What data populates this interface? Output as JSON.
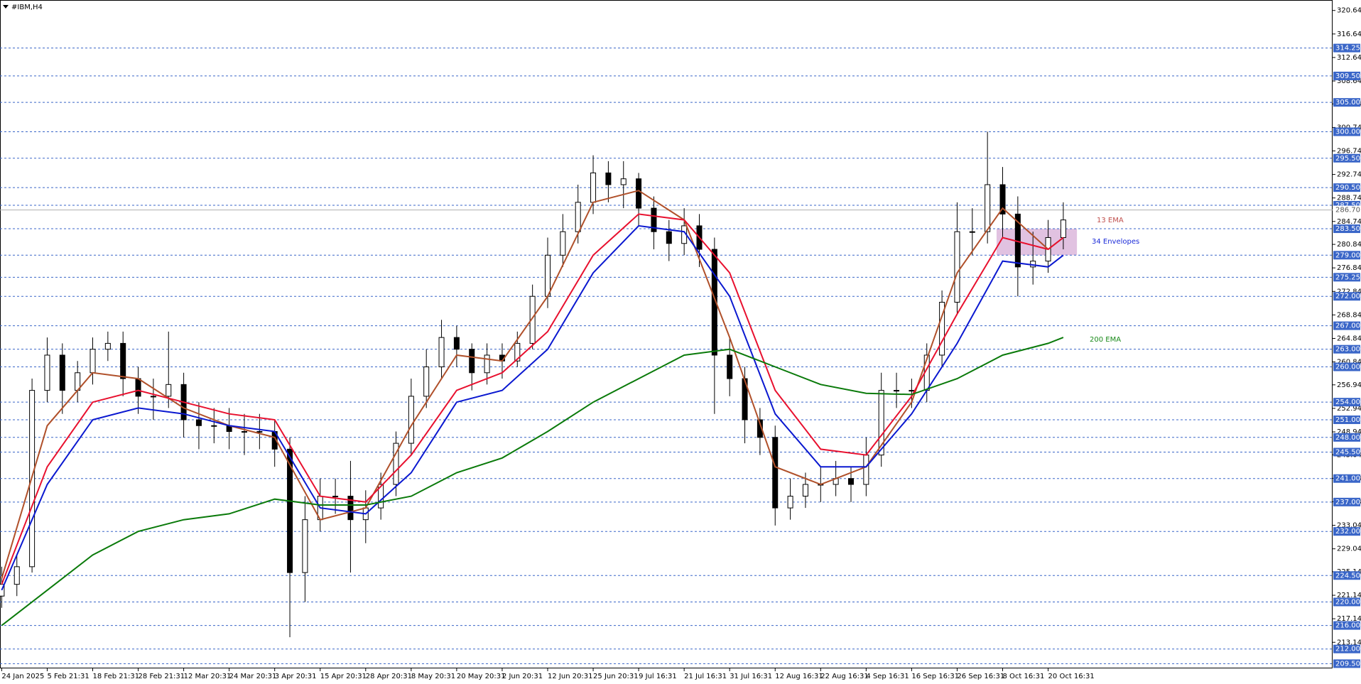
{
  "chart_data": {
    "type": "candlestick",
    "title": "#IBM,H4",
    "categories": [
      "24 Jan 2025",
      null,
      null,
      "5 Feb 21:31",
      null,
      null,
      "18 Feb 21:31",
      null,
      null,
      "28 Feb 21:31",
      null,
      null,
      "12 Mar 20:31",
      null,
      null,
      "24 Mar 20:31",
      null,
      null,
      "3 Apr 20:31",
      null,
      null,
      "15 Apr 20:31",
      null,
      null,
      "28 Apr 20:31",
      null,
      null,
      "8 May 20:31",
      null,
      null,
      "20 May 20:31",
      null,
      null,
      "2 Jun 20:31",
      null,
      null,
      "12 Jun 20:31",
      null,
      null,
      "25 Jun 20:31",
      null,
      null,
      "9 Jul 16:31",
      null,
      null,
      "21 Jul 16:31",
      null,
      null,
      "31 Jul 16:31",
      null,
      null,
      "12 Aug 16:31",
      null,
      null,
      "22 Aug 16:31",
      null,
      null,
      "4 Sep 16:31",
      null,
      null,
      "16 Sep 16:31",
      null,
      null,
      "26 Sep 16:31",
      null,
      null,
      "8 Oct 16:31",
      null,
      null,
      "20 Oct 16:31",
      null
    ],
    "open": [
      221,
      223,
      226,
      256,
      262,
      256,
      259,
      263,
      264,
      258,
      255,
      255,
      257,
      251,
      250,
      250,
      249,
      249,
      249,
      246,
      225,
      234,
      238,
      238,
      234,
      236,
      240,
      247,
      255,
      260,
      265,
      263,
      259,
      262,
      261,
      264,
      272,
      279,
      283,
      288,
      293,
      291,
      292,
      287,
      283,
      281,
      284,
      280,
      262,
      258,
      251,
      248,
      236,
      238,
      240,
      240,
      241,
      240,
      245,
      256,
      256,
      256,
      262,
      271,
      283,
      283,
      291,
      286,
      277,
      278,
      282
    ],
    "high": [
      226,
      228,
      258,
      265,
      264,
      261,
      265,
      266,
      266,
      260,
      258,
      266,
      259,
      254,
      253,
      253,
      252,
      252,
      251,
      248,
      238,
      241,
      241,
      244,
      239,
      242,
      249,
      258,
      263,
      268,
      267,
      264,
      264,
      264,
      266,
      274,
      282,
      286,
      291,
      296,
      295,
      295,
      293,
      289,
      285,
      287,
      286,
      282,
      265,
      260,
      253,
      250,
      241,
      242,
      243,
      244,
      243,
      248,
      259,
      259,
      258,
      264,
      273,
      288,
      287,
      300,
      294,
      289,
      283,
      285,
      288
    ],
    "low": [
      219,
      221,
      225,
      254,
      252,
      254,
      257,
      261,
      255,
      252,
      251,
      253,
      248,
      246,
      247,
      246,
      245,
      246,
      243,
      214,
      220,
      232,
      235,
      225,
      230,
      234,
      238,
      245,
      253,
      258,
      260,
      256,
      257,
      258,
      260,
      263,
      270,
      277,
      281,
      286,
      288,
      287,
      284,
      280,
      278,
      279,
      277,
      252,
      255,
      247,
      245,
      233,
      234,
      236,
      237,
      238,
      237,
      238,
      243,
      253,
      253,
      254,
      260,
      269,
      279,
      281,
      282,
      272,
      274,
      276,
      280
    ],
    "close": [
      223,
      226,
      256,
      262,
      256,
      259,
      263,
      264,
      258,
      255,
      255,
      257,
      251,
      250,
      250,
      249,
      249,
      249,
      246,
      225,
      234,
      238,
      238,
      234,
      236,
      240,
      247,
      255,
      260,
      265,
      263,
      259,
      262,
      261,
      264,
      272,
      279,
      283,
      288,
      293,
      291,
      292,
      287,
      283,
      281,
      284,
      280,
      262,
      258,
      251,
      248,
      236,
      238,
      240,
      240,
      241,
      240,
      245,
      256,
      256,
      256,
      262,
      271,
      283,
      283,
      291,
      286,
      277,
      278,
      282,
      285
    ],
    "series": [
      {
        "name": "13 EMA",
        "color": "#b0502a",
        "label_color": "#c0504d",
        "x": [
          0,
          3,
          6,
          9,
          12,
          15,
          18,
          21,
          24,
          27,
          30,
          33,
          36,
          39,
          42,
          45,
          48,
          51,
          54,
          57,
          60,
          63,
          66,
          69,
          70
        ],
        "values": [
          224,
          250,
          259,
          258,
          253,
          250,
          248,
          234,
          236,
          250,
          262,
          261,
          272,
          288,
          290,
          285,
          265,
          243,
          240,
          243,
          254,
          276,
          287,
          280,
          282
        ]
      },
      {
        "name": "34 Envelopes",
        "color": "#e8102e",
        "lower_color": "#0a18d0",
        "label_color": "#1a2ad8",
        "x": [
          0,
          3,
          6,
          9,
          12,
          15,
          18,
          21,
          24,
          27,
          30,
          33,
          36,
          39,
          42,
          45,
          48,
          51,
          54,
          57,
          60,
          63,
          66,
          69,
          70
        ],
        "values": [
          223,
          243,
          254,
          256,
          254,
          252,
          251,
          238,
          237,
          245,
          256,
          259,
          266,
          279,
          286,
          285,
          276,
          256,
          246,
          245,
          255,
          269,
          282,
          280,
          282
        ],
        "lower": [
          222,
          240,
          251,
          253,
          252,
          250,
          249,
          236,
          235,
          242,
          254,
          256,
          263,
          276,
          284,
          283,
          272,
          252,
          243,
          243,
          252,
          264,
          278,
          277,
          279
        ]
      },
      {
        "name": "200 EMA",
        "color": "#0a7a0a",
        "label_color": "#1a8a1a",
        "x": [
          0,
          3,
          6,
          9,
          12,
          15,
          18,
          21,
          24,
          27,
          30,
          33,
          36,
          39,
          42,
          45,
          48,
          51,
          54,
          57,
          60,
          63,
          66,
          69,
          70
        ],
        "values": [
          216,
          222,
          228,
          232,
          234,
          235,
          237.5,
          236.5,
          236.5,
          238,
          242,
          244.5,
          249,
          254,
          258,
          262,
          263,
          260,
          257,
          255.5,
          255.3,
          258,
          262,
          264,
          265
        ]
      }
    ],
    "zone": {
      "color": "#d9b3d9",
      "low": 279,
      "high": 283.5
    },
    "ylim": [
      208.7,
      322.3
    ],
    "yticks": [
      320.64,
      316.64,
      312.64,
      308.64,
      304.74,
      300.74,
      296.74,
      292.74,
      288.74,
      284.74,
      280.84,
      276.84,
      272.84,
      268.84,
      264.84,
      260.84,
      256.94,
      252.94,
      248.94,
      245.04,
      241.04,
      237.04,
      233.04,
      229.04,
      225.14,
      221.14,
      217.14,
      213.14
    ],
    "levels": [
      {
        "value": 314.25,
        "label": "314.25"
      },
      {
        "value": 309.5,
        "label": "309.50"
      },
      {
        "value": 305,
        "label": "305.00"
      },
      {
        "value": 300,
        "label": "300.00"
      },
      {
        "value": 295.5,
        "label": "295.50"
      },
      {
        "value": 290.5,
        "label": "290.50"
      },
      {
        "value": 287.5,
        "label": "287.50"
      },
      {
        "value": 283.5,
        "label": "283.50"
      },
      {
        "value": 279,
        "label": "279.00"
      },
      {
        "value": 275.25,
        "label": "275.25"
      },
      {
        "value": 272,
        "label": "272.00"
      },
      {
        "value": 267,
        "label": "267.00"
      },
      {
        "value": 263,
        "label": "263.00"
      },
      {
        "value": 260,
        "label": "260.00"
      },
      {
        "value": 254,
        "label": "254.00"
      },
      {
        "value": 251,
        "label": "251.00"
      },
      {
        "value": 248,
        "label": "248.00"
      },
      {
        "value": 245.5,
        "label": "245.50"
      },
      {
        "value": 241,
        "label": "241.00"
      },
      {
        "value": 237,
        "label": "237.00"
      },
      {
        "value": 232,
        "label": "232.00"
      },
      {
        "value": 224.5,
        "label": "224.50"
      },
      {
        "value": 220,
        "label": "220.00"
      },
      {
        "value": 216,
        "label": "216.00"
      },
      {
        "value": 212,
        "label": "212.00"
      },
      {
        "value": 209.5,
        "label": "209.50"
      }
    ],
    "level_color": "#3a66c8",
    "current_price": {
      "value": 286.7,
      "label": "286.70"
    }
  }
}
